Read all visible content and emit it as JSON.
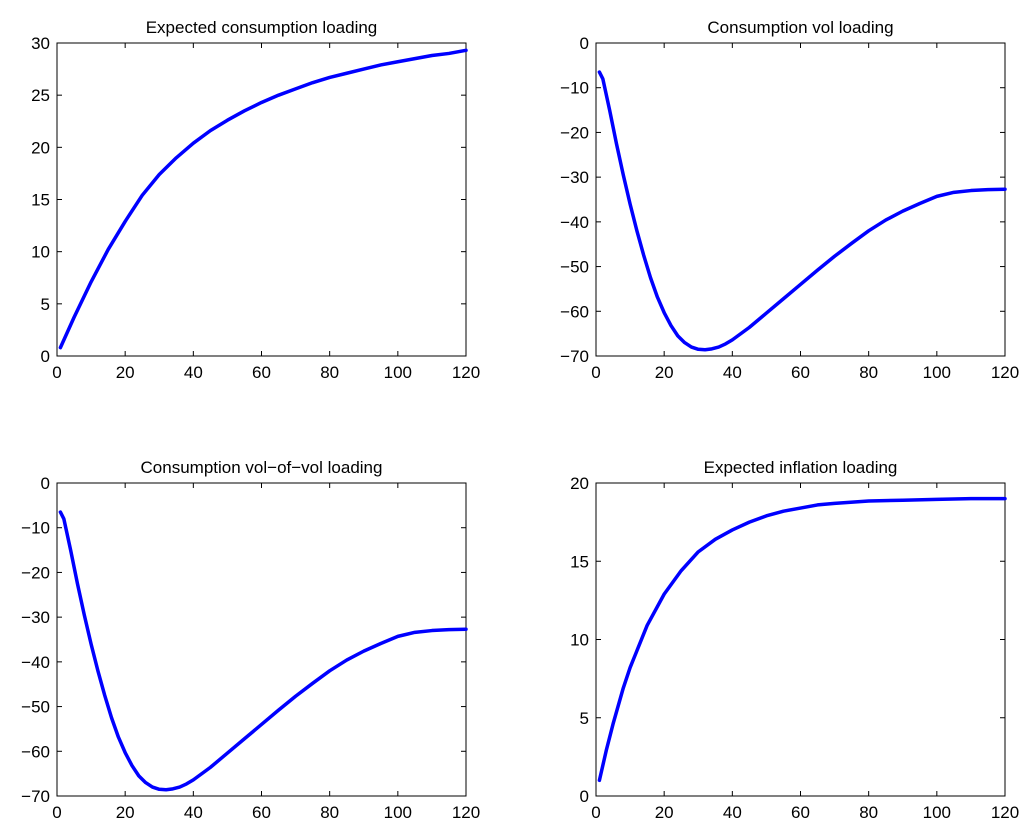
{
  "chart_data": [
    {
      "type": "line",
      "title": "Expected consumption loading",
      "xlim": [
        0,
        120
      ],
      "ylim": [
        0,
        30
      ],
      "xticks": [
        0,
        20,
        40,
        60,
        80,
        100,
        120
      ],
      "yticks": [
        0,
        5,
        10,
        15,
        20,
        25,
        30
      ],
      "grid": false,
      "series": [
        {
          "color": "#0000ff",
          "x": [
            1,
            5,
            10,
            15,
            20,
            25,
            30,
            35,
            40,
            45,
            50,
            55,
            60,
            65,
            70,
            75,
            80,
            85,
            90,
            95,
            100,
            105,
            110,
            115,
            120
          ],
          "y": [
            0.8,
            3.7,
            7.1,
            10.2,
            12.9,
            15.4,
            17.4,
            19.0,
            20.4,
            21.6,
            22.6,
            23.5,
            24.3,
            25.0,
            25.6,
            26.2,
            26.7,
            27.1,
            27.5,
            27.9,
            28.2,
            28.5,
            28.8,
            29.0,
            29.3
          ]
        }
      ]
    },
    {
      "type": "line",
      "title": "Consumption vol loading",
      "xlim": [
        0,
        120
      ],
      "ylim": [
        -70,
        0
      ],
      "xticks": [
        0,
        20,
        40,
        60,
        80,
        100,
        120
      ],
      "yticks": [
        -70,
        -60,
        -50,
        -40,
        -30,
        -20,
        -10,
        0
      ],
      "grid": false,
      "series": [
        {
          "color": "#0000ff",
          "x": [
            1,
            2,
            4,
            6,
            8,
            10,
            12,
            14,
            16,
            18,
            20,
            22,
            24,
            26,
            28,
            30,
            32,
            34,
            36,
            38,
            40,
            45,
            50,
            55,
            60,
            65,
            70,
            75,
            80,
            85,
            90,
            95,
            100,
            105,
            110,
            115,
            120
          ],
          "y": [
            -6.5,
            -8.0,
            -15.0,
            -22.5,
            -29.5,
            -36.0,
            -42.0,
            -47.5,
            -52.5,
            -56.8,
            -60.3,
            -63.2,
            -65.5,
            -67.0,
            -68.0,
            -68.5,
            -68.6,
            -68.4,
            -68.0,
            -67.3,
            -66.4,
            -63.6,
            -60.4,
            -57.2,
            -54.0,
            -50.8,
            -47.7,
            -44.8,
            -42.0,
            -39.6,
            -37.6,
            -35.9,
            -34.3,
            -33.4,
            -33.0,
            -32.8,
            -32.7
          ]
        }
      ]
    },
    {
      "type": "line",
      "title": "Consumption vol−of−vol loading",
      "xlim": [
        0,
        120
      ],
      "ylim": [
        -70,
        0
      ],
      "xticks": [
        0,
        20,
        40,
        60,
        80,
        100,
        120
      ],
      "yticks": [
        -70,
        -60,
        -50,
        -40,
        -30,
        -20,
        -10,
        0
      ],
      "grid": false,
      "series": [
        {
          "color": "#0000ff",
          "x": [
            1,
            2,
            4,
            6,
            8,
            10,
            12,
            14,
            16,
            18,
            20,
            22,
            24,
            26,
            28,
            30,
            32,
            34,
            36,
            38,
            40,
            45,
            50,
            55,
            60,
            65,
            70,
            75,
            80,
            85,
            90,
            95,
            100,
            105,
            110,
            115,
            120
          ],
          "y": [
            -6.5,
            -8.0,
            -15.0,
            -22.5,
            -29.5,
            -36.0,
            -42.0,
            -47.5,
            -52.5,
            -56.8,
            -60.3,
            -63.2,
            -65.5,
            -67.0,
            -68.0,
            -68.5,
            -68.6,
            -68.4,
            -68.0,
            -67.3,
            -66.4,
            -63.6,
            -60.4,
            -57.2,
            -54.0,
            -50.8,
            -47.7,
            -44.8,
            -42.0,
            -39.6,
            -37.6,
            -35.9,
            -34.3,
            -33.4,
            -33.0,
            -32.8,
            -32.7
          ]
        }
      ]
    },
    {
      "type": "line",
      "title": "Expected inflation loading",
      "xlim": [
        0,
        120
      ],
      "ylim": [
        0,
        20
      ],
      "xticks": [
        0,
        20,
        40,
        60,
        80,
        100,
        120
      ],
      "yticks": [
        0,
        5,
        10,
        15,
        20
      ],
      "grid": false,
      "series": [
        {
          "color": "#0000ff",
          "x": [
            1,
            3,
            5,
            8,
            10,
            15,
            20,
            25,
            30,
            35,
            40,
            45,
            50,
            55,
            60,
            65,
            70,
            80,
            90,
            100,
            110,
            120
          ],
          "y": [
            1.0,
            2.9,
            4.6,
            6.9,
            8.2,
            10.9,
            12.9,
            14.4,
            15.6,
            16.4,
            17.0,
            17.5,
            17.9,
            18.2,
            18.4,
            18.6,
            18.7,
            18.85,
            18.9,
            18.95,
            19.0,
            19.0
          ]
        }
      ]
    }
  ]
}
